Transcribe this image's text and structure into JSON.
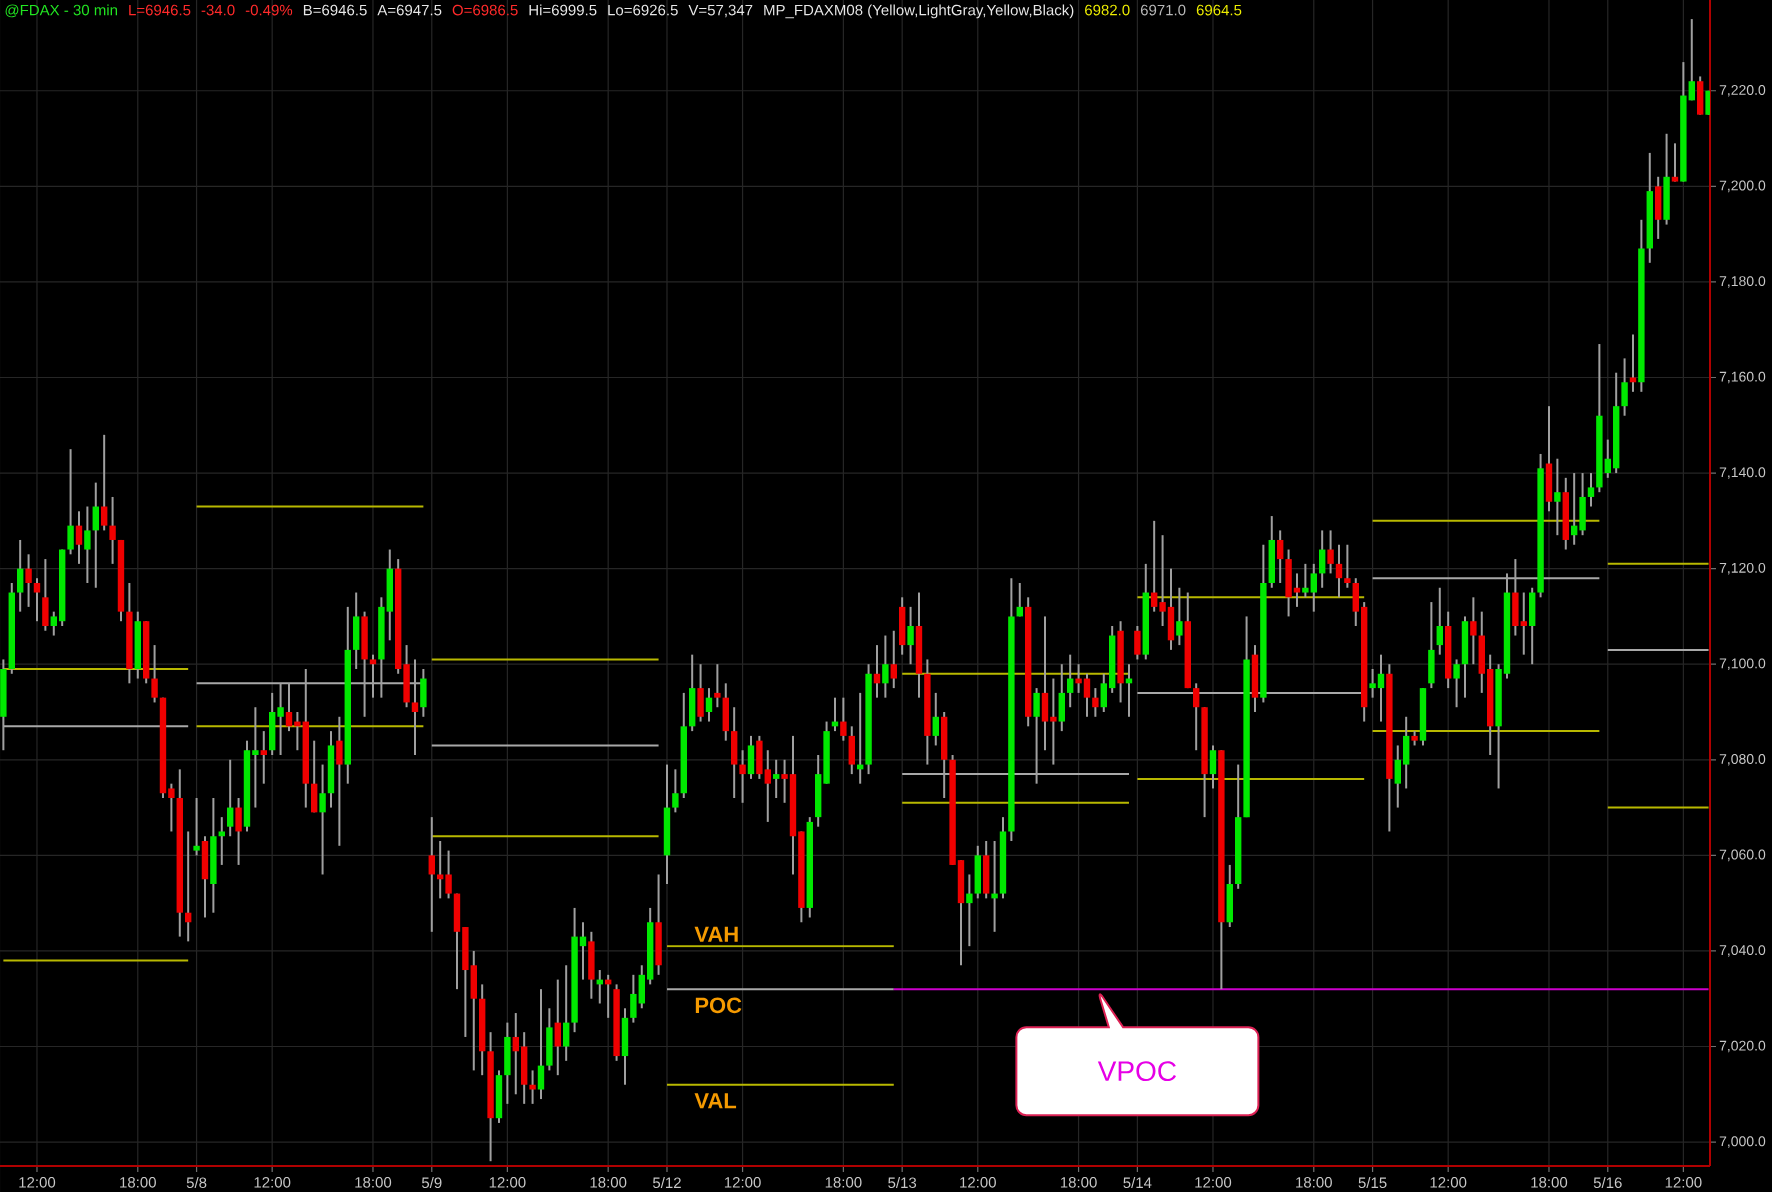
{
  "chart_data": {
    "type": "candlestick",
    "title": "@FDAX - 30 min",
    "categories": [
      null,
      null,
      null,
      null,
      "12:00",
      null,
      null,
      null,
      null,
      null,
      null,
      null,
      null,
      null,
      null,
      null,
      "18:00",
      null,
      null,
      null,
      null,
      null,
      null,
      "5/8",
      null,
      null,
      null,
      null,
      null,
      null,
      null,
      null,
      "12:00",
      null,
      null,
      null,
      null,
      null,
      null,
      null,
      null,
      null,
      null,
      null,
      "18:00",
      null,
      null,
      null,
      null,
      null,
      null,
      "5/9",
      null,
      null,
      null,
      null,
      null,
      null,
      null,
      null,
      "12:00",
      null,
      null,
      null,
      null,
      null,
      null,
      null,
      null,
      null,
      null,
      null,
      "18:00",
      null,
      null,
      null,
      null,
      null,
      null,
      "5/12",
      null,
      null,
      null,
      null,
      null,
      null,
      null,
      null,
      "12:00",
      null,
      null,
      null,
      null,
      null,
      null,
      null,
      null,
      null,
      null,
      null,
      "18:00",
      null,
      null,
      null,
      null,
      null,
      null,
      "5/13",
      null,
      null,
      null,
      null,
      null,
      null,
      null,
      null,
      "12:00",
      null,
      null,
      null,
      null,
      null,
      null,
      null,
      null,
      null,
      null,
      null,
      "18:00",
      null,
      null,
      null,
      null,
      null,
      null,
      "5/14",
      null,
      null,
      null,
      null,
      null,
      null,
      null,
      null,
      "12:00",
      null,
      null,
      null,
      null,
      null,
      null,
      null,
      null,
      null,
      null,
      null,
      "18:00",
      null,
      null,
      null,
      null,
      null,
      null,
      "5/15",
      null,
      null,
      null,
      null,
      null,
      null,
      null,
      null,
      "12:00",
      null,
      null,
      null,
      null,
      null,
      null,
      null,
      null,
      null,
      null,
      null,
      "18:00",
      null,
      null,
      null,
      null,
      null,
      null,
      "5/16",
      null,
      null,
      null,
      null,
      null,
      null,
      null,
      null,
      "12:00",
      null,
      null,
      null
    ],
    "ohlc": [
      [
        7089,
        7101,
        7082,
        7099
      ],
      [
        7099,
        7117,
        7098,
        7115
      ],
      [
        7115,
        7126,
        7111,
        7120
      ],
      [
        7120,
        7123,
        7112,
        7117
      ],
      [
        7117,
        7118,
        7109,
        7115
      ],
      [
        7114,
        7122,
        7107,
        7108
      ],
      [
        7108,
        7111,
        7106,
        7110
      ],
      [
        7109,
        7124,
        7108,
        7124
      ],
      [
        7124,
        7145,
        7123,
        7129
      ],
      [
        7129,
        7132,
        7121,
        7125
      ],
      [
        7124,
        7133,
        7117,
        7128
      ],
      [
        7128,
        7138,
        7116,
        7133
      ],
      [
        7133,
        7148,
        7128,
        7129
      ],
      [
        7129,
        7135,
        7121,
        7126
      ],
      [
        7126,
        7126,
        7109,
        7111
      ],
      [
        7111,
        7117,
        7096,
        7099
      ],
      [
        7099,
        7111,
        7097,
        7109
      ],
      [
        7109,
        7109,
        7096,
        7097
      ],
      [
        7097,
        7104,
        7092,
        7093
      ],
      [
        7093,
        7093,
        7072,
        7073
      ],
      [
        7074,
        7075,
        7065,
        7072
      ],
      [
        7072,
        7078,
        7043,
        7048
      ],
      [
        7048,
        7065,
        7042,
        7046
      ],
      [
        7061,
        7072,
        7060,
        7062
      ],
      [
        7063,
        7064,
        7047,
        7055
      ],
      [
        7054,
        7072,
        7048,
        7064
      ],
      [
        7064,
        7068,
        7058,
        7065
      ],
      [
        7066,
        7080,
        7064,
        7070
      ],
      [
        7070,
        7072,
        7058,
        7065
      ],
      [
        7066,
        7084,
        7065,
        7082
      ],
      [
        7081,
        7091,
        7070,
        7082
      ],
      [
        7082,
        7086,
        7075,
        7081
      ],
      [
        7082,
        7094,
        7081,
        7090
      ],
      [
        7089,
        7096,
        7081,
        7091
      ],
      [
        7090,
        7096,
        7086,
        7087
      ],
      [
        7088,
        7090,
        7082,
        7087
      ],
      [
        7088,
        7099,
        7070,
        7075
      ],
      [
        7075,
        7084,
        7069,
        7069
      ],
      [
        7069,
        7079,
        7056,
        7073
      ],
      [
        7073,
        7086,
        7070,
        7083
      ],
      [
        7084,
        7089,
        7062,
        7079
      ],
      [
        7079,
        7112,
        7075,
        7103
      ],
      [
        7103,
        7115,
        7099,
        7110
      ],
      [
        7110,
        7111,
        7089,
        7101
      ],
      [
        7101,
        7102,
        7093,
        7100
      ],
      [
        7101,
        7114,
        7093,
        7112
      ],
      [
        7111,
        7124,
        7105,
        7120
      ],
      [
        7120,
        7122,
        7098,
        7099
      ],
      [
        7100,
        7104,
        7091,
        7092
      ],
      [
        7092,
        7101,
        7081,
        7090
      ],
      [
        7091,
        7099,
        7089,
        7097
      ],
      [
        7060,
        7068,
        7044,
        7056
      ],
      [
        7056,
        7063,
        7051,
        7055
      ],
      [
        7056,
        7061,
        7051,
        7052
      ],
      [
        7052,
        7052,
        7032,
        7044
      ],
      [
        7045,
        7045,
        7022,
        7036
      ],
      [
        7037,
        7040,
        7015,
        7030
      ],
      [
        7030,
        7033,
        7014,
        7019
      ],
      [
        7019,
        7023,
        6996,
        7005
      ],
      [
        7005,
        7015,
        7004,
        7014
      ],
      [
        7014,
        7025,
        7008,
        7022
      ],
      [
        7022,
        7027,
        7010,
        7019
      ],
      [
        7020,
        7023,
        7008,
        7012
      ],
      [
        7012,
        7015,
        7008,
        7011
      ],
      [
        7011,
        7032,
        7009,
        7016
      ],
      [
        7016,
        7028,
        7015,
        7024
      ],
      [
        7025,
        7034,
        7014,
        7020
      ],
      [
        7020,
        7037,
        7017,
        7025
      ],
      [
        7025,
        7049,
        7023,
        7043
      ],
      [
        7041,
        7046,
        7034,
        7043
      ],
      [
        7042,
        7044,
        7030,
        7034
      ],
      [
        7033,
        7036,
        7029,
        7034
      ],
      [
        7034,
        7035,
        7026,
        7033
      ],
      [
        7032,
        7033,
        7017,
        7018
      ],
      [
        7018,
        7028,
        7012,
        7026
      ],
      [
        7026,
        7035,
        7025,
        7031
      ],
      [
        7029,
        7037,
        7028,
        7035
      ],
      [
        7034,
        7049,
        7033,
        7046
      ],
      [
        7046,
        7056,
        7035,
        7037
      ],
      [
        7060,
        7079,
        7054,
        7070
      ],
      [
        7070,
        7078,
        7069,
        7073
      ],
      [
        7073,
        7094,
        7072,
        7087
      ],
      [
        7087,
        7102,
        7086,
        7095
      ],
      [
        7095,
        7100,
        7088,
        7089
      ],
      [
        7090,
        7095,
        7088,
        7093
      ],
      [
        7094,
        7100,
        7091,
        7093
      ],
      [
        7093,
        7096,
        7084,
        7086
      ],
      [
        7086,
        7091,
        7072,
        7079
      ],
      [
        7079,
        7082,
        7071,
        7077
      ],
      [
        7077,
        7085,
        7076,
        7083
      ],
      [
        7084,
        7085,
        7076,
        7077
      ],
      [
        7078,
        7082,
        7067,
        7075
      ],
      [
        7076,
        7080,
        7072,
        7077
      ],
      [
        7077,
        7080,
        7071,
        7076
      ],
      [
        7077,
        7085,
        7056,
        7064
      ],
      [
        7065,
        7065,
        7046,
        7049
      ],
      [
        7049,
        7068,
        7047,
        7067
      ],
      [
        7068,
        7081,
        7066,
        7077
      ],
      [
        7075,
        7088,
        7075,
        7086
      ],
      [
        7087,
        7093,
        7086,
        7088
      ],
      [
        7088,
        7093,
        7084,
        7085
      ],
      [
        7085,
        7087,
        7077,
        7079
      ],
      [
        7078,
        7094,
        7075,
        7079
      ],
      [
        7079,
        7100,
        7077,
        7098
      ],
      [
        7098,
        7104,
        7093,
        7096
      ],
      [
        7096,
        7106,
        7093,
        7100
      ],
      [
        7100,
        7107,
        7095,
        7097
      ],
      [
        7112,
        7114,
        7102,
        7104
      ],
      [
        7104,
        7112,
        7100,
        7108
      ],
      [
        7108,
        7115,
        7093,
        7098
      ],
      [
        7098,
        7101,
        7079,
        7085
      ],
      [
        7085,
        7094,
        7083,
        7089
      ],
      [
        7089,
        7090,
        7072,
        7080
      ],
      [
        7080,
        7081,
        7058,
        7058
      ],
      [
        7059,
        7059,
        7037,
        7050
      ],
      [
        7050,
        7056,
        7041,
        7052
      ],
      [
        7052,
        7062,
        7051,
        7060
      ],
      [
        7060,
        7063,
        7051,
        7052
      ],
      [
        7051,
        7063,
        7044,
        7052
      ],
      [
        7052,
        7068,
        7051,
        7065
      ],
      [
        7065,
        7118,
        7063,
        7110
      ],
      [
        7110,
        7117,
        7110,
        7112
      ],
      [
        7112,
        7114,
        7087,
        7089
      ],
      [
        7089,
        7095,
        7075,
        7094
      ],
      [
        7094,
        7110,
        7082,
        7088
      ],
      [
        7089,
        7097,
        7079,
        7088
      ],
      [
        7088,
        7100,
        7086,
        7094
      ],
      [
        7094,
        7102,
        7091,
        7097
      ],
      [
        7097,
        7100,
        7094,
        7096
      ],
      [
        7097,
        7098,
        7089,
        7093
      ],
      [
        7093,
        7095,
        7089,
        7091
      ],
      [
        7091,
        7098,
        7090,
        7096
      ],
      [
        7095,
        7108,
        7094,
        7106
      ],
      [
        7107,
        7109,
        7092,
        7096
      ],
      [
        7096,
        7100,
        7089,
        7097
      ],
      [
        7107,
        7108,
        7101,
        7102
      ],
      [
        7102,
        7121,
        7101,
        7115
      ],
      [
        7115,
        7130,
        7111,
        7112
      ],
      [
        7113,
        7127,
        7108,
        7111
      ],
      [
        7112,
        7120,
        7103,
        7105
      ],
      [
        7106,
        7116,
        7104,
        7109
      ],
      [
        7109,
        7115,
        7095,
        7095
      ],
      [
        7095,
        7096,
        7082,
        7091
      ],
      [
        7091,
        7091,
        7068,
        7077
      ],
      [
        7077,
        7083,
        7074,
        7082
      ],
      [
        7082,
        7082,
        7032,
        7046
      ],
      [
        7046,
        7058,
        7045,
        7054
      ],
      [
        7054,
        7079,
        7053,
        7068
      ],
      [
        7068,
        7110,
        7068,
        7101
      ],
      [
        7102,
        7104,
        7090,
        7093
      ],
      [
        7093,
        7125,
        7092,
        7117
      ],
      [
        7117,
        7131,
        7116,
        7126
      ],
      [
        7126,
        7128,
        7117,
        7122
      ],
      [
        7122,
        7124,
        7110,
        7114
      ],
      [
        7116,
        7119,
        7112,
        7115
      ],
      [
        7115,
        7121,
        7114,
        7116
      ],
      [
        7115,
        7121,
        7111,
        7119
      ],
      [
        7119,
        7128,
        7116,
        7124
      ],
      [
        7124,
        7128,
        7119,
        7121
      ],
      [
        7121,
        7125,
        7114,
        7118
      ],
      [
        7118,
        7125,
        7116,
        7117
      ],
      [
        7117,
        7118,
        7108,
        7111
      ],
      [
        7112,
        7113,
        7088,
        7091
      ],
      [
        7095,
        7099,
        7093,
        7096
      ],
      [
        7095,
        7102,
        7088,
        7098
      ],
      [
        7098,
        7100,
        7065,
        7076
      ],
      [
        7075,
        7083,
        7070,
        7080
      ],
      [
        7079,
        7089,
        7074,
        7085
      ],
      [
        7085,
        7086,
        7083,
        7084
      ],
      [
        7084,
        7095,
        7083,
        7095
      ],
      [
        7096,
        7113,
        7095,
        7103
      ],
      [
        7104,
        7116,
        7102,
        7108
      ],
      [
        7108,
        7111,
        7095,
        7097
      ],
      [
        7097,
        7101,
        7091,
        7100
      ],
      [
        7100,
        7110,
        7093,
        7109
      ],
      [
        7109,
        7114,
        7100,
        7106
      ],
      [
        7106,
        7111,
        7094,
        7098
      ],
      [
        7099,
        7102,
        7081,
        7087
      ],
      [
        7087,
        7100,
        7074,
        7099
      ],
      [
        7098,
        7119,
        7097,
        7115
      ],
      [
        7115,
        7122,
        7106,
        7108
      ],
      [
        7109,
        7115,
        7102,
        7108
      ],
      [
        7108,
        7116,
        7100,
        7115
      ],
      [
        7115,
        7144,
        7114,
        7141
      ],
      [
        7142,
        7154,
        7132,
        7134
      ],
      [
        7134,
        7143,
        7127,
        7136
      ],
      [
        7136,
        7139,
        7124,
        7126
      ],
      [
        7127,
        7140,
        7125,
        7129
      ],
      [
        7128,
        7140,
        7127,
        7135
      ],
      [
        7135,
        7140,
        7133,
        7137
      ],
      [
        7137,
        7167,
        7136,
        7152
      ],
      [
        7140,
        7147,
        7139,
        7143
      ],
      [
        7141,
        7161,
        7140,
        7154
      ],
      [
        7154,
        7164,
        7152,
        7159
      ],
      [
        7160,
        7169,
        7157,
        7159
      ],
      [
        7159,
        7193,
        7157,
        7187
      ],
      [
        7187,
        7207,
        7184,
        7199
      ],
      [
        7200,
        7202,
        7189,
        7193
      ],
      [
        7193,
        7211,
        7192,
        7202
      ],
      [
        7202,
        7209,
        7201,
        7201
      ],
      [
        7201,
        7226,
        7201,
        7219
      ],
      [
        7218,
        7235,
        7218,
        7222
      ],
      [
        7222,
        7223,
        7215,
        7215
      ],
      [
        7215,
        7220,
        7215,
        7220
      ]
    ],
    "colors": [
      "#00e800",
      "#00e800",
      "#00e800",
      "#f00000",
      "#f00000",
      "#f00000",
      "#00e800",
      "#00e800",
      "#00e800",
      "#f00000",
      "#00e800",
      "#00e800",
      "#f00000",
      "#f00000",
      "#f00000",
      "#f00000",
      "#00e800",
      "#f00000",
      "#f00000",
      "#f00000",
      "#f00000",
      "#f00000",
      "#f00000",
      "#00e800",
      "#f00000",
      "#00e800",
      "#00e800",
      "#00e800",
      "#f00000",
      "#00e800",
      "#00e800",
      "#f00000",
      "#00e800",
      "#00e800",
      "#f00000",
      "#f00000",
      "#f00000",
      "#f00000",
      "#00e800",
      "#00e800",
      "#f00000",
      "#00e800",
      "#00e800",
      "#f00000",
      "#f00000",
      "#00e800",
      "#00e800",
      "#f00000",
      "#f00000",
      "#f00000",
      "#00e800",
      "#f00000",
      "#f00000",
      "#f00000",
      "#f00000",
      "#f00000",
      "#f00000",
      "#f00000",
      "#f00000",
      "#00e800",
      "#00e800",
      "#f00000",
      "#f00000",
      "#f00000",
      "#00e800",
      "#00e800",
      "#f00000",
      "#00e800",
      "#00e800",
      "#00e800",
      "#f00000",
      "#00e800",
      "#f00000",
      "#f00000",
      "#00e800",
      "#00e800",
      "#00e800",
      "#00e800",
      "#f00000",
      "#00e800",
      "#00e800",
      "#00e800",
      "#00e800",
      "#f00000",
      "#00e800",
      "#f00000",
      "#f00000",
      "#f00000",
      "#f00000",
      "#00e800",
      "#f00000",
      "#f00000",
      "#00e800",
      "#f00000",
      "#f00000",
      "#f00000",
      "#00e800",
      "#00e800",
      "#00e800",
      "#00e800",
      "#f00000",
      "#f00000",
      "#00e800",
      "#00e800",
      "#f00000",
      "#00e800",
      "#f00000",
      "#f00000",
      "#00e800",
      "#f00000",
      "#f00000",
      "#00e800",
      "#f00000",
      "#f00000",
      "#f00000",
      "#00e800",
      "#00e800",
      "#f00000",
      "#00e800",
      "#00e800",
      "#00e800",
      "#00e800",
      "#f00000",
      "#00e800",
      "#f00000",
      "#f00000",
      "#00e800",
      "#00e800",
      "#f00000",
      "#f00000",
      "#f00000",
      "#00e800",
      "#00e800",
      "#f00000",
      "#00e800",
      "#f00000",
      "#00e800",
      "#f00000",
      "#f00000",
      "#f00000",
      "#00e800",
      "#f00000",
      "#f00000",
      "#f00000",
      "#00e800",
      "#f00000",
      "#00e800",
      "#00e800",
      "#00e800",
      "#f00000",
      "#00e800",
      "#00e800",
      "#f00000",
      "#f00000",
      "#f00000",
      "#00e800",
      "#00e800",
      "#00e800",
      "#f00000",
      "#f00000",
      "#f00000",
      "#f00000",
      "#f00000",
      "#00e800",
      "#00e800",
      "#f00000",
      "#00e800",
      "#00e800",
      "#f00000",
      "#00e800",
      "#00e800",
      "#00e800",
      "#f00000",
      "#00e800",
      "#00e800",
      "#f00000",
      "#f00000",
      "#f00000",
      "#00e800",
      "#00e800",
      "#f00000",
      "#f00000",
      "#00e800",
      "#00e800",
      "#f00000",
      "#00e800",
      "#f00000",
      "#00e800",
      "#00e800",
      "#00e800",
      "#00e800",
      "#00e800",
      "#00e800",
      "#00e800",
      "#f00000",
      "#00e800",
      "#00e800",
      "#f00000",
      "#00e800",
      "#f00000",
      "#00e800",
      "#00e800",
      "#f00000",
      "#00e800"
    ],
    "series": [
      {
        "type": "line",
        "color": "#b8b800",
        "values": [
          7099,
          7099,
          7099,
          7099,
          7099,
          7099,
          7099,
          7099,
          7099,
          7099,
          7099,
          7099,
          7099,
          7099,
          7099,
          7099,
          7099,
          7099,
          7099,
          7099,
          7099,
          7099,
          7099,
          7133,
          7133,
          7133,
          7133,
          7133,
          7133,
          7133,
          7133,
          7133,
          7133,
          7133,
          7133,
          7133,
          7133,
          7133,
          7133,
          7133,
          7133,
          7133,
          7133,
          7133,
          7133,
          7133,
          7133,
          7133,
          7133,
          7133,
          7133,
          7101,
          7101,
          7101,
          7101,
          7101,
          7101,
          7101,
          7101,
          7101,
          7101,
          7101,
          7101,
          7101,
          7101,
          7101,
          7101,
          7101,
          7101,
          7101,
          7101,
          7101,
          7101,
          7101,
          7101,
          7101,
          7101,
          7101,
          7101,
          7041,
          7041,
          7041,
          7041,
          7041,
          7041,
          7041,
          7041,
          7041,
          7041,
          7041,
          7041,
          7041,
          7041,
          7041,
          7041,
          7041,
          7041,
          7041,
          7041,
          7041,
          7041,
          7041,
          7041,
          7041,
          7041,
          7041,
          7041,
          7098,
          7098,
          7098,
          7098,
          7098,
          7098,
          7098,
          7098,
          7098,
          7098,
          7098,
          7098,
          7098,
          7098,
          7098,
          7098,
          7098,
          7098,
          7098,
          7098,
          7098,
          7098,
          7098,
          7098,
          7098,
          7098,
          7098,
          7098,
          7114,
          7114,
          7114,
          7114,
          7114,
          7114,
          7114,
          7114,
          7114,
          7114,
          7114,
          7114,
          7114,
          7114,
          7114,
          7114,
          7114,
          7114,
          7114,
          7114,
          7114,
          7114,
          7114,
          7114,
          7114,
          7114,
          7114,
          7114,
          7130,
          7130,
          7130,
          7130,
          7130,
          7130,
          7130,
          7130,
          7130,
          7130,
          7130,
          7130,
          7130,
          7130,
          7130,
          7130,
          7130,
          7130,
          7130,
          7130,
          7130,
          7130,
          7130,
          7130,
          7130,
          7130,
          7130,
          7130,
          7121,
          7121,
          7121,
          7121,
          7121,
          7121,
          7121,
          7121,
          7121,
          7121,
          7121,
          7121,
          7121
        ]
      },
      {
        "type": "line",
        "color": "#a8a8a8",
        "values": [
          7087,
          7087,
          7087,
          7087,
          7087,
          7087,
          7087,
          7087,
          7087,
          7087,
          7087,
          7087,
          7087,
          7087,
          7087,
          7087,
          7087,
          7087,
          7087,
          7087,
          7087,
          7087,
          7087,
          7096,
          7096,
          7096,
          7096,
          7096,
          7096,
          7096,
          7096,
          7096,
          7096,
          7096,
          7096,
          7096,
          7096,
          7096,
          7096,
          7096,
          7096,
          7096,
          7096,
          7096,
          7096,
          7096,
          7096,
          7096,
          7096,
          7096,
          7096,
          7083,
          7083,
          7083,
          7083,
          7083,
          7083,
          7083,
          7083,
          7083,
          7083,
          7083,
          7083,
          7083,
          7083,
          7083,
          7083,
          7083,
          7083,
          7083,
          7083,
          7083,
          7083,
          7083,
          7083,
          7083,
          7083,
          7083,
          7083,
          7032,
          7032,
          7032,
          7032,
          7032,
          7032,
          7032,
          7032,
          7032,
          7032,
          7032,
          7032,
          7032,
          7032,
          7032,
          7032,
          7032,
          7032,
          7032,
          7032,
          7032,
          7032,
          7032,
          7032,
          7032,
          7032,
          7032,
          7032,
          7077,
          7077,
          7077,
          7077,
          7077,
          7077,
          7077,
          7077,
          7077,
          7077,
          7077,
          7077,
          7077,
          7077,
          7077,
          7077,
          7077,
          7077,
          7077,
          7077,
          7077,
          7077,
          7077,
          7077,
          7077,
          7077,
          7077,
          7077,
          7094,
          7094,
          7094,
          7094,
          7094,
          7094,
          7094,
          7094,
          7094,
          7094,
          7094,
          7094,
          7094,
          7094,
          7094,
          7094,
          7094,
          7094,
          7094,
          7094,
          7094,
          7094,
          7094,
          7094,
          7094,
          7094,
          7094,
          7094,
          7118,
          7118,
          7118,
          7118,
          7118,
          7118,
          7118,
          7118,
          7118,
          7118,
          7118,
          7118,
          7118,
          7118,
          7118,
          7118,
          7118,
          7118,
          7118,
          7118,
          7118,
          7118,
          7118,
          7118,
          7118,
          7118,
          7118,
          7118,
          7103,
          7103,
          7103,
          7103,
          7103,
          7103,
          7103,
          7103,
          7103,
          7103,
          7103,
          7103,
          7103
        ]
      },
      {
        "type": "line",
        "color": "#b8b800",
        "values": [
          7038,
          7038,
          7038,
          7038,
          7038,
          7038,
          7038,
          7038,
          7038,
          7038,
          7038,
          7038,
          7038,
          7038,
          7038,
          7038,
          7038,
          7038,
          7038,
          7038,
          7038,
          7038,
          7038,
          7087,
          7087,
          7087,
          7087,
          7087,
          7087,
          7087,
          7087,
          7087,
          7087,
          7087,
          7087,
          7087,
          7087,
          7087,
          7087,
          7087,
          7087,
          7087,
          7087,
          7087,
          7087,
          7087,
          7087,
          7087,
          7087,
          7087,
          7087,
          7064,
          7064,
          7064,
          7064,
          7064,
          7064,
          7064,
          7064,
          7064,
          7064,
          7064,
          7064,
          7064,
          7064,
          7064,
          7064,
          7064,
          7064,
          7064,
          7064,
          7064,
          7064,
          7064,
          7064,
          7064,
          7064,
          7064,
          7064,
          7012,
          7012,
          7012,
          7012,
          7012,
          7012,
          7012,
          7012,
          7012,
          7012,
          7012,
          7012,
          7012,
          7012,
          7012,
          7012,
          7012,
          7012,
          7012,
          7012,
          7012,
          7012,
          7012,
          7012,
          7012,
          7012,
          7012,
          7012,
          7071,
          7071,
          7071,
          7071,
          7071,
          7071,
          7071,
          7071,
          7071,
          7071,
          7071,
          7071,
          7071,
          7071,
          7071,
          7071,
          7071,
          7071,
          7071,
          7071,
          7071,
          7071,
          7071,
          7071,
          7071,
          7071,
          7071,
          7071,
          7076,
          7076,
          7076,
          7076,
          7076,
          7076,
          7076,
          7076,
          7076,
          7076,
          7076,
          7076,
          7076,
          7076,
          7076,
          7076,
          7076,
          7076,
          7076,
          7076,
          7076,
          7076,
          7076,
          7076,
          7076,
          7076,
          7076,
          7076,
          7086,
          7086,
          7086,
          7086,
          7086,
          7086,
          7086,
          7086,
          7086,
          7086,
          7086,
          7086,
          7086,
          7086,
          7086,
          7086,
          7086,
          7086,
          7086,
          7086,
          7086,
          7086,
          7086,
          7086,
          7086,
          7086,
          7086,
          7086,
          7070,
          7070,
          7070,
          7070,
          7070,
          7070,
          7070,
          7070,
          7070,
          7070,
          7070,
          7070,
          7070
        ]
      },
      {
        "type": "line",
        "color": "#cc00cc",
        "values": [
          null,
          null,
          null,
          null,
          null,
          null,
          null,
          null,
          null,
          null,
          null,
          null,
          null,
          null,
          null,
          null,
          null,
          null,
          null,
          null,
          null,
          null,
          null,
          null,
          null,
          null,
          null,
          null,
          null,
          null,
          null,
          null,
          null,
          null,
          null,
          null,
          null,
          null,
          null,
          null,
          null,
          null,
          null,
          null,
          null,
          null,
          null,
          null,
          null,
          null,
          null,
          null,
          null,
          null,
          null,
          null,
          null,
          null,
          null,
          null,
          null,
          null,
          null,
          null,
          null,
          null,
          null,
          null,
          null,
          null,
          null,
          null,
          null,
          null,
          null,
          null,
          null,
          null,
          null,
          null,
          null,
          null,
          null,
          null,
          null,
          null,
          null,
          null,
          null,
          null,
          null,
          null,
          null,
          null,
          null,
          null,
          null,
          null,
          null,
          null,
          null,
          null,
          null,
          null,
          null,
          null,
          7032,
          7032,
          7032,
          7032,
          7032,
          7032,
          7032,
          7032,
          7032,
          7032,
          7032,
          7032,
          7032,
          7032,
          7032,
          7032,
          7032,
          7032,
          7032,
          7032,
          7032,
          7032,
          7032,
          7032,
          7032,
          7032,
          7032,
          7032,
          7032,
          7032,
          7032,
          7032,
          7032,
          7032,
          7032,
          7032,
          7032,
          7032,
          7032,
          7032,
          7032,
          7032,
          7032,
          7032,
          7032,
          7032,
          7032,
          7032,
          7032,
          7032,
          7032,
          7032,
          7032,
          7032,
          7032,
          7032,
          7032,
          7032,
          7032,
          7032,
          7032,
          7032,
          7032,
          7032,
          7032,
          7032,
          7032,
          7032,
          7032,
          7032,
          7032,
          7032,
          7032,
          7032,
          7032,
          7032,
          7032,
          7032,
          7032,
          7032,
          7032,
          7032,
          7032,
          7032,
          7032,
          7032,
          7032,
          7032,
          7032,
          7032,
          7032,
          7032,
          7032,
          7032,
          7032,
          7032,
          7032,
          7032
        ]
      }
    ],
    "ylim": [
      6995,
      7239
    ],
    "yticks": [
      {
        "value": 7000,
        "label": "7,000.0"
      },
      {
        "value": 7020,
        "label": "7,020.0"
      },
      {
        "value": 7040,
        "label": "7,040.0"
      },
      {
        "value": 7060,
        "label": "7,060.0"
      },
      {
        "value": 7080,
        "label": "7,080.0"
      },
      {
        "value": 7100,
        "label": "7,100.0"
      },
      {
        "value": 7120,
        "label": "7,120.0"
      },
      {
        "value": 7140,
        "label": "7,140.0"
      },
      {
        "value": 7160,
        "label": "7,160.0"
      },
      {
        "value": 7180,
        "label": "7,180.0"
      },
      {
        "value": 7200,
        "label": "7,200.0"
      },
      {
        "value": 7220,
        "label": "7,220.0"
      }
    ],
    "grid": true,
    "annotations": [
      "L=6946.5",
      "-34.0",
      "-0.49%",
      "B=6946.5",
      "A=6947.5",
      "O=6986.5",
      "Hi=6999.5",
      "Lo=6926.5",
      "V=57,347",
      "MP_FDAXM08 (Yellow,LightGray,Yellow,Black)",
      "6982.0",
      "6971.0",
      "6964.5",
      {
        "text": "VAH",
        "x": "5/12",
        "y": 7041
      },
      {
        "text": "POC",
        "x": "5/12",
        "y": 7032
      },
      {
        "text": "VAL",
        "x": "5/12",
        "y": 7012
      },
      {
        "text": "VPOC",
        "x": "5/14",
        "y": 7032
      }
    ]
  }
}
